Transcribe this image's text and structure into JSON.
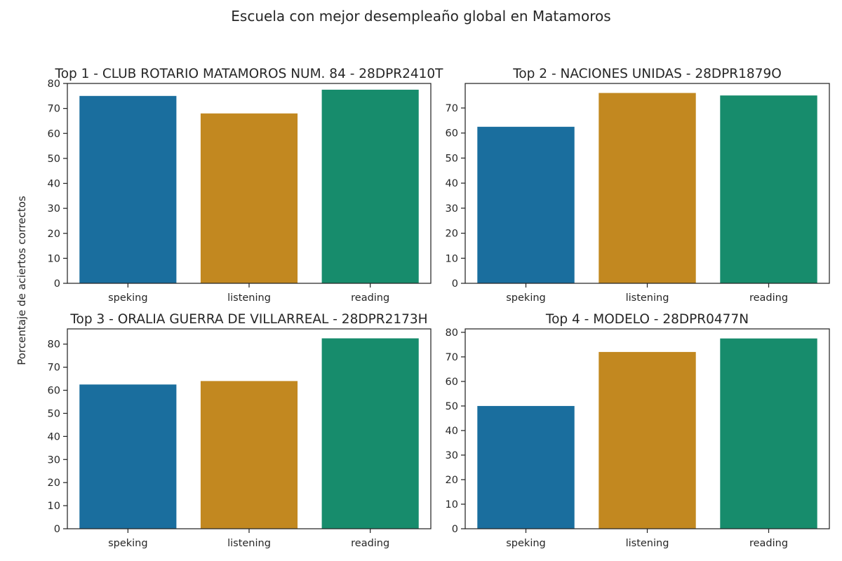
{
  "figure": {
    "title": "Escuela con mejor desempleaño global en Matamoros",
    "ylabel": "Porcentaje de aciertos correctos"
  },
  "colors": [
    "#1a6e9e",
    "#c28820",
    "#178c6c"
  ],
  "chart_data": [
    {
      "type": "bar",
      "title": "Top  1 - CLUB ROTARIO MATAMOROS NUM. 84 - 28DPR2410T",
      "categories": [
        "speking",
        "listening",
        "reading"
      ],
      "values": [
        75,
        68,
        77.5
      ],
      "ylim": [
        0,
        80
      ],
      "yticks": [
        0,
        10,
        20,
        30,
        40,
        50,
        60,
        70,
        80
      ],
      "grid": false
    },
    {
      "type": "bar",
      "title": "Top  2 - NACIONES UNIDAS - 28DPR1879O",
      "categories": [
        "speking",
        "listening",
        "reading"
      ],
      "values": [
        62.5,
        76,
        75
      ],
      "ylim": [
        0,
        79.8
      ],
      "yticks": [
        0,
        10,
        20,
        30,
        40,
        50,
        60,
        70
      ],
      "grid": false
    },
    {
      "type": "bar",
      "title": "Top  3 - ORALIA GUERRA DE VILLARREAL - 28DPR2173H",
      "categories": [
        "speking",
        "listening",
        "reading"
      ],
      "values": [
        62.5,
        64,
        82.5
      ],
      "ylim": [
        0,
        86.6
      ],
      "yticks": [
        0,
        10,
        20,
        30,
        40,
        50,
        60,
        70,
        80
      ],
      "grid": false
    },
    {
      "type": "bar",
      "title": "Top  4 - MODELO - 28DPR0477N",
      "categories": [
        "speking",
        "listening",
        "reading"
      ],
      "values": [
        50,
        72,
        77.5
      ],
      "ylim": [
        0,
        81.4
      ],
      "yticks": [
        0,
        10,
        20,
        30,
        40,
        50,
        60,
        70,
        80
      ],
      "grid": false
    }
  ]
}
